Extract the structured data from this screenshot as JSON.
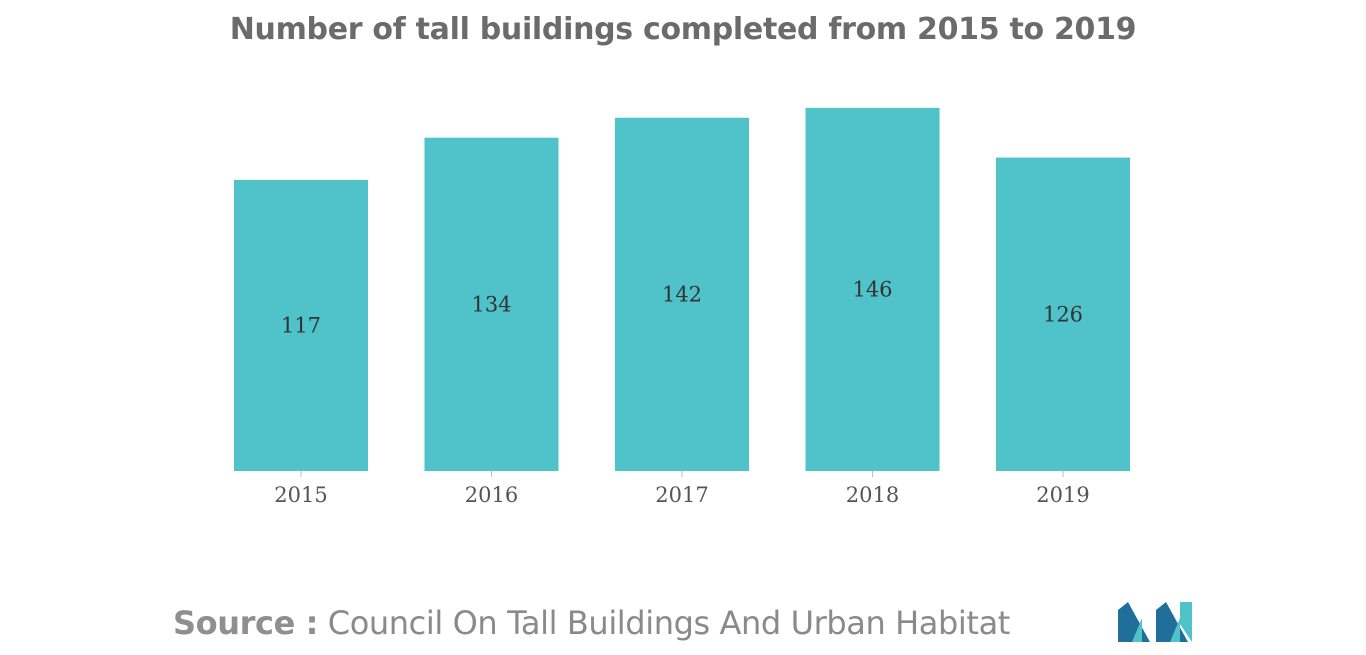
{
  "chart_data": {
    "type": "bar",
    "title": "Number of tall buildings completed from 2015 to 2019",
    "categories": [
      "2015",
      "2016",
      "2017",
      "2018",
      "2019"
    ],
    "values": [
      117,
      134,
      142,
      146,
      126
    ],
    "xlabel": "",
    "ylabel": "",
    "ylim": [
      0,
      160
    ],
    "grid": false,
    "legend": "none",
    "bar_color": "#4fc3c9",
    "data_labels": "inside-center"
  },
  "source": {
    "key": "Source :",
    "value": "Council On Tall Buildings And Urban Habitat"
  },
  "logo": {
    "icon": "mordor-intelligence-logo-icon",
    "colors": [
      "#1f6f9a",
      "#4fc3c9"
    ]
  }
}
